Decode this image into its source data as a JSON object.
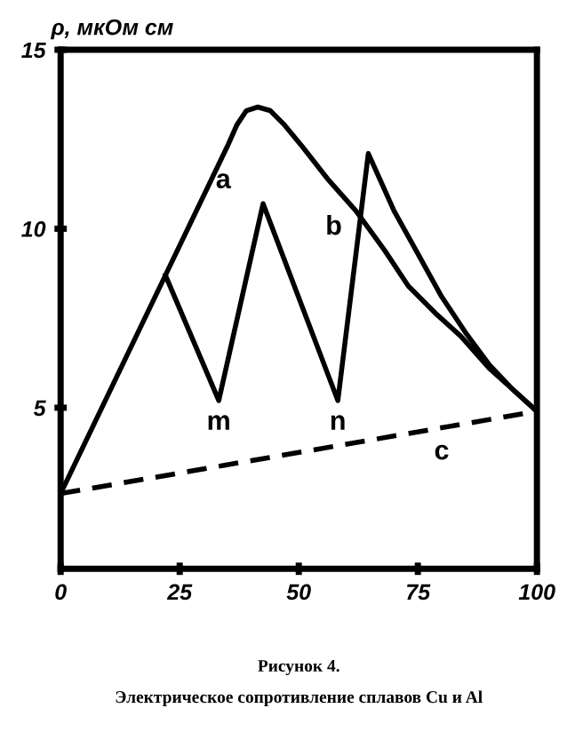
{
  "chart_data": {
    "type": "line",
    "ylabel": "ρ, мкОм см",
    "xlim": [
      0,
      100
    ],
    "xticks": [
      0,
      25,
      50,
      75,
      100
    ],
    "ylim": [
      0.5,
      15
    ],
    "yticks": [
      5,
      10,
      15
    ],
    "grid": false,
    "legend": false,
    "marker": "none",
    "series": [
      {
        "name": "a",
        "color": "#000000",
        "line_style": "solid",
        "x": [
          0,
          22,
          35,
          37,
          39,
          41.4,
          44,
          47,
          50.7,
          56,
          62,
          68,
          73,
          79,
          84,
          90,
          95,
          100
        ],
        "values": [
          2.6,
          8.7,
          12.3,
          12.9,
          13.3,
          13.4,
          13.3,
          12.9,
          12.3,
          11.4,
          10.5,
          9.4,
          8.4,
          7.6,
          7.0,
          6.1,
          5.5,
          4.9
        ]
      },
      {
        "name": "b",
        "color": "#000000",
        "line_style": "solid",
        "x": [
          22,
          33.2,
          42.5,
          58.2,
          64.6,
          70,
          75,
          80,
          85,
          90,
          95,
          100
        ],
        "values": [
          8.7,
          5.2,
          10.7,
          5.2,
          12.1,
          10.5,
          9.3,
          8.1,
          7.1,
          6.2,
          5.5,
          4.9
        ]
      },
      {
        "name": "c",
        "color": "#000000",
        "line_style": "dashed",
        "x": [
          0,
          100
        ],
        "values": [
          2.6,
          4.9
        ]
      }
    ],
    "annotations": [
      {
        "text": "m",
        "x": 33.2,
        "y": 5.2
      },
      {
        "text": "n",
        "x": 58.2,
        "y": 5.2
      },
      "Рисунок 4.",
      "Электрическое сопротивление сплавов Cu и Al"
    ]
  }
}
